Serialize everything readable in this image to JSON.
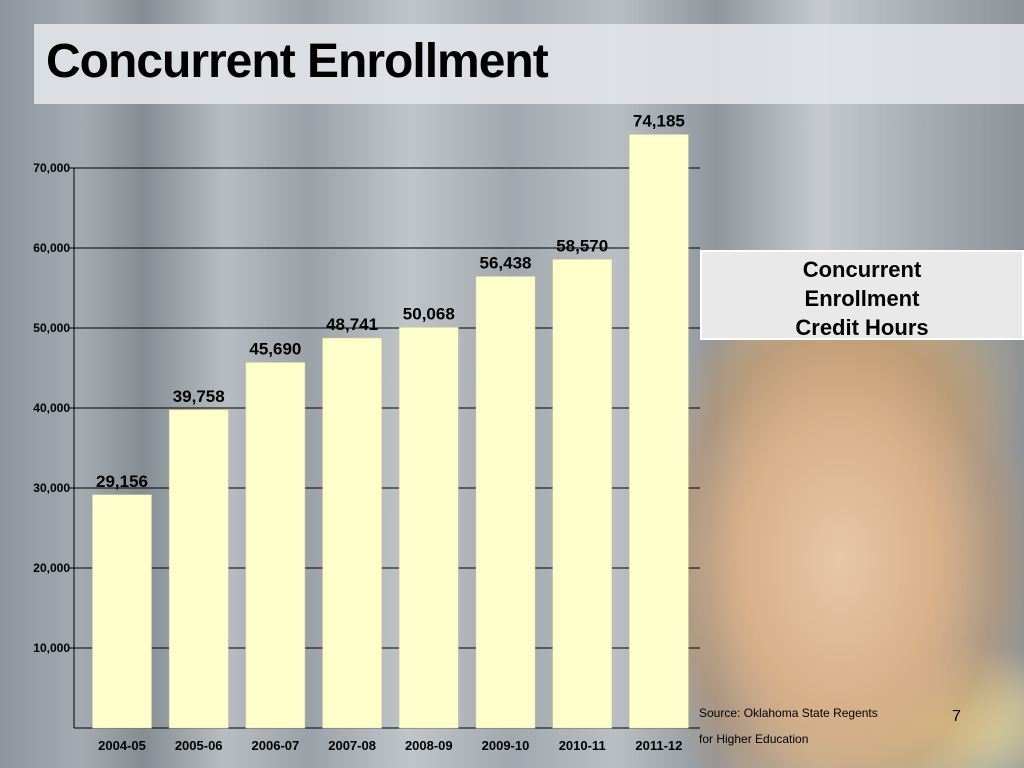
{
  "slide": {
    "title": "Concurrent Enrollment",
    "legend_lines": [
      "Concurrent",
      "Enrollment",
      "Credit Hours"
    ],
    "source_line1": "Source: Oklahoma State Regents",
    "source_line2": "for Higher Education",
    "page_number": "7"
  },
  "chart_data": {
    "type": "bar",
    "title": "",
    "xlabel": "",
    "ylabel": "",
    "legend": "Concurrent Enrollment Credit Hours",
    "legend_placement": "right",
    "categories": [
      "2004-05",
      "2005-06",
      "2006-07",
      "2007-08",
      "2008-09",
      "2009-10",
      "2010-11",
      "2011-12"
    ],
    "values": [
      29156,
      39758,
      45690,
      48741,
      50068,
      56438,
      58570,
      74185
    ],
    "data_labels": [
      "29,156",
      "39,758",
      "45,690",
      "48,741",
      "50,068",
      "56,438",
      "58,570",
      "74,185"
    ],
    "yticks": [
      10000,
      20000,
      30000,
      40000,
      50000,
      60000,
      70000
    ],
    "ytick_labels": [
      "10,000",
      "20,000",
      "30,000",
      "40,000",
      "50,000",
      "60,000",
      "70,000"
    ],
    "ylim": [
      0,
      70000
    ],
    "grid": true,
    "colors": {
      "bar": "#ffffcc",
      "grid": "#000000"
    }
  }
}
